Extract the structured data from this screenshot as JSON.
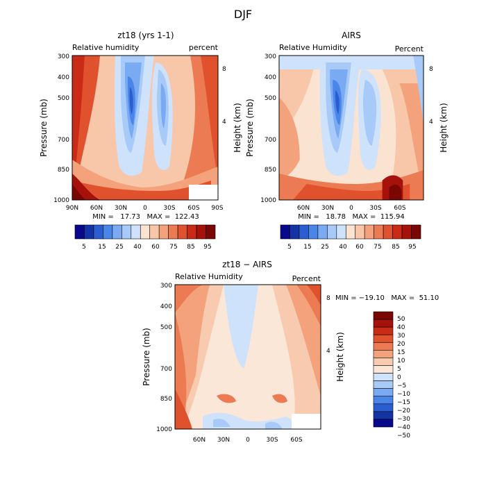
{
  "figure": {
    "title": "DJF"
  },
  "colors": {
    "rh": [
      "#08088c",
      "#1434a6",
      "#2a5ed0",
      "#4a86ea",
      "#7aaaf2",
      "#a8caf8",
      "#cfe2fb",
      "#fbe3d2",
      "#f8c6a8",
      "#f3a27c",
      "#ec7a52",
      "#e0522e",
      "#c92b16",
      "#a6120b",
      "#7a0704"
    ],
    "diff": [
      "#08088c",
      "#1434a6",
      "#2a5ed0",
      "#4a86ea",
      "#7aaaf2",
      "#a8caf8",
      "#cfe2fb",
      "#fbe7d8",
      "#f8cbb0",
      "#f3a27c",
      "#ec7a52",
      "#e0522e",
      "#c92b16",
      "#a6120b",
      "#7a0704"
    ]
  },
  "chart_data": [
    {
      "type": "heatmap",
      "title": "zt18 (yrs 1-1)",
      "subtitle_left": "Relative humidity",
      "subtitle_right": "percent",
      "xlabel": "",
      "ylabel": "Pressure (mb)",
      "ylabel_right": "Height (km)",
      "x_ticks": [
        "90N",
        "60N",
        "30N",
        "0",
        "30S",
        "60S",
        "90S"
      ],
      "y_ticks": [
        "300",
        "400",
        "500",
        "700",
        "850",
        "1000"
      ],
      "y_ticks_right": [
        "8",
        "4"
      ],
      "min_max_text": "MIN =   17.73   MAX =  122.43",
      "colorbar_labels": [
        "5",
        "15",
        "25",
        "40",
        "60",
        "75",
        "85",
        "95"
      ],
      "grid": false
    },
    {
      "type": "heatmap",
      "title": "AIRS",
      "subtitle_left": "Relative Humidity",
      "subtitle_right": "Percent",
      "xlabel": "",
      "ylabel": "Pressure (mb)",
      "ylabel_right": "Height (km)",
      "x_ticks": [
        "60N",
        "30N",
        "0",
        "30S",
        "60S"
      ],
      "y_ticks": [
        "300",
        "400",
        "500",
        "700",
        "850",
        "1000"
      ],
      "y_ticks_right": [
        "8",
        "4"
      ],
      "min_max_text": "MIN =   18.78   MAX =  115.94",
      "colorbar_labels": [
        "5",
        "15",
        "25",
        "40",
        "60",
        "75",
        "85",
        "95"
      ],
      "grid": false
    },
    {
      "type": "heatmap",
      "title": "zt18 − AIRS",
      "subtitle_left": "Relative Humidity",
      "subtitle_right": "Percent",
      "xlabel": "",
      "ylabel": "Pressure (mb)",
      "ylabel_right": "Height (km)",
      "x_ticks": [
        "60N",
        "30N",
        "0",
        "30S",
        "60S"
      ],
      "y_ticks": [
        "300",
        "400",
        "500",
        "700",
        "850",
        "1000"
      ],
      "y_ticks_right": [
        "8",
        "4"
      ],
      "min_max_text": "MIN = −19.10   MAX =  51.10",
      "colorbar_labels": [
        "50",
        "40",
        "30",
        "20",
        "15",
        "10",
        "5",
        "0",
        "−5",
        "−10",
        "−15",
        "−20",
        "−30",
        "−40",
        "−50"
      ],
      "grid": false
    }
  ]
}
